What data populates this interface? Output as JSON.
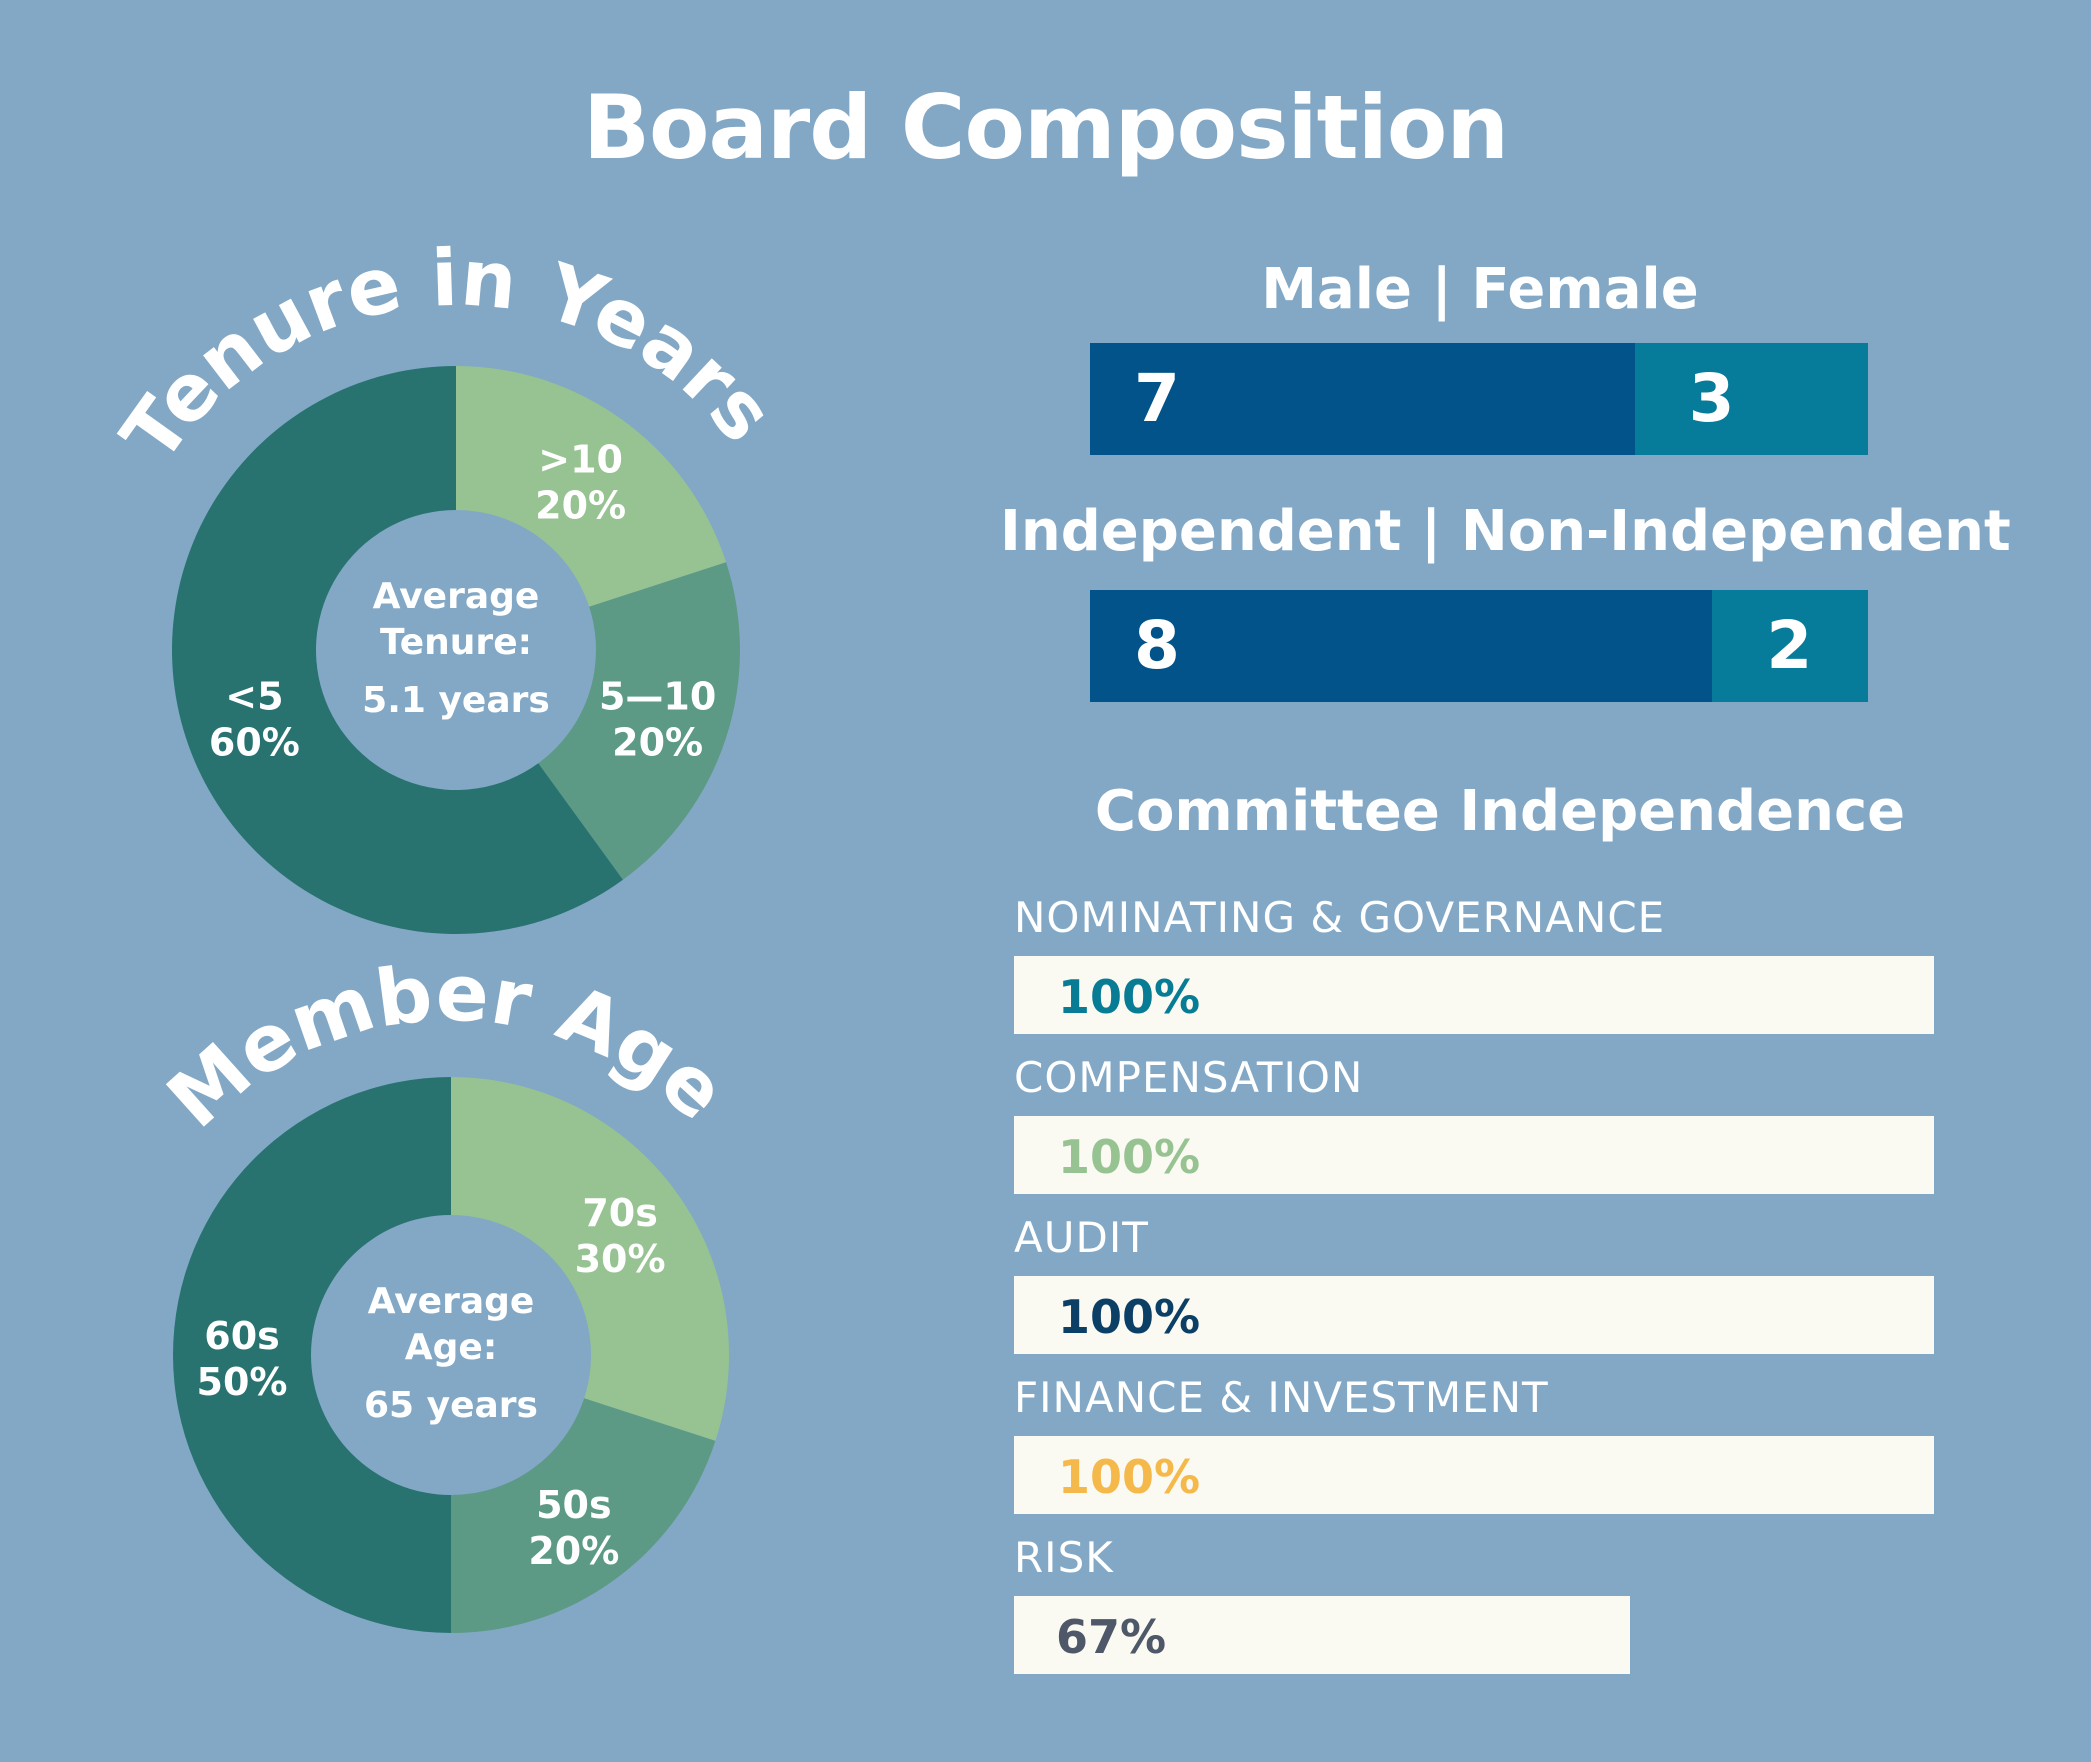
{
  "title": "Board Composition",
  "colors": {
    "background": "#82a8c6",
    "dark_green": "#287370",
    "mid_green": "#5c9a85",
    "light_green": "#96c391",
    "navy": "#02538a",
    "teal": "#067b9a",
    "track": "#fbfaf2"
  },
  "chart_data": [
    {
      "type": "pie",
      "title": "Tenure in Years",
      "center": {
        "line1": "Average",
        "line2": "Tenure:",
        "line3": "5.1 years"
      },
      "slices": [
        {
          "label": ">10",
          "value": 20,
          "value_label": "20%",
          "color": "#96c391"
        },
        {
          "label": "5—10",
          "value": 20,
          "value_label": "20%",
          "color": "#5c9a85"
        },
        {
          "label": "<5",
          "value": 60,
          "value_label": "60%",
          "color": "#287370"
        }
      ]
    },
    {
      "type": "pie",
      "title": "Member Age",
      "center": {
        "line1": "Average",
        "line2": "Age:",
        "line3": "65 years"
      },
      "slices": [
        {
          "label": "70s",
          "value": 30,
          "value_label": "30%",
          "color": "#96c391"
        },
        {
          "label": "50s",
          "value": 20,
          "value_label": "20%",
          "color": "#5c9a85"
        },
        {
          "label": "60s",
          "value": 50,
          "value_label": "50%",
          "color": "#287370"
        }
      ]
    },
    {
      "type": "bar",
      "title": "Male | Female",
      "categories": [
        "Male",
        "Female"
      ],
      "values": [
        7,
        3
      ],
      "value_labels": [
        "7",
        "3"
      ],
      "colors": [
        "#02538a",
        "#067b9a"
      ]
    },
    {
      "type": "bar",
      "title": "Independent | Non-Independent",
      "categories": [
        "Independent",
        "Non-Independent"
      ],
      "values": [
        8,
        2
      ],
      "value_labels": [
        "8",
        "2"
      ],
      "colors": [
        "#02538a",
        "#067b9a"
      ]
    },
    {
      "type": "bar",
      "title": "Committee Independence",
      "categories": [
        "NOMINATING & GOVERNANCE",
        "COMPENSATION",
        "AUDIT",
        "FINANCE & INVESTMENT",
        "RISK"
      ],
      "values": [
        100,
        100,
        100,
        100,
        67
      ],
      "value_labels": [
        "100%",
        "100%",
        "100%",
        "100%",
        "67%"
      ],
      "label_colors": [
        "#077c94",
        "#96c391",
        "#0c3f66",
        "#f5b84a",
        "#4e5868"
      ],
      "ylim": [
        0,
        100
      ]
    }
  ]
}
